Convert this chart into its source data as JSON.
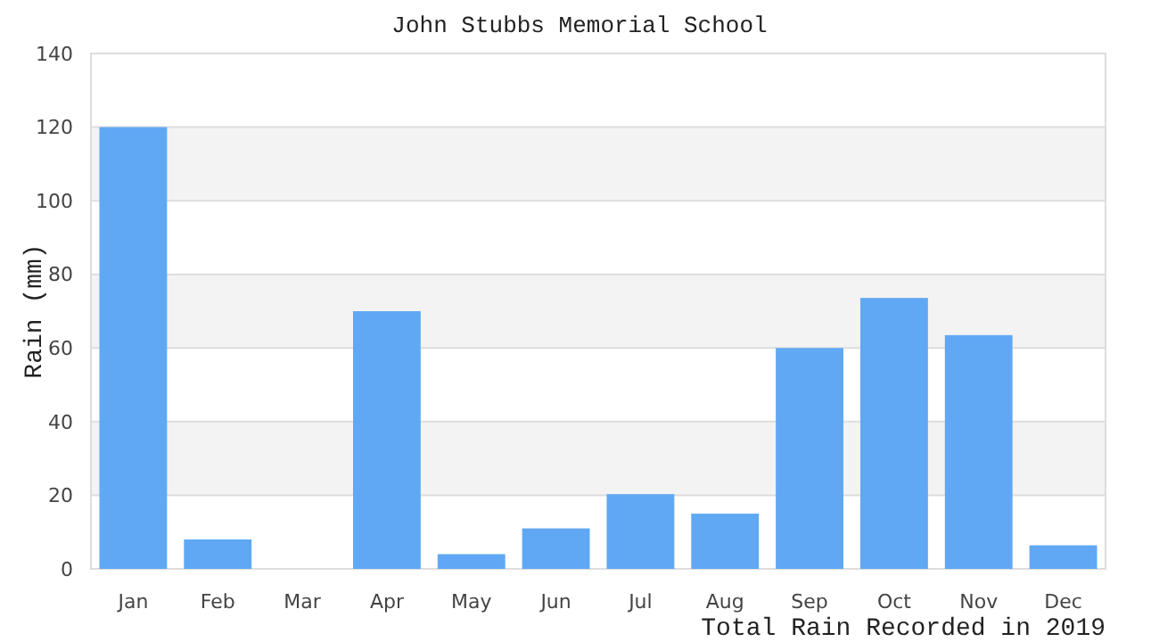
{
  "chart_data": {
    "type": "bar",
    "title": "John Stubbs Memorial School",
    "xlabel": "Total Rain Recorded in 2019",
    "ylabel": "Rain (mm)",
    "categories": [
      "Jan",
      "Feb",
      "Mar",
      "Apr",
      "May",
      "Jun",
      "Jul",
      "Aug",
      "Sep",
      "Oct",
      "Nov",
      "Dec"
    ],
    "values": [
      120,
      8,
      0,
      70,
      4,
      11,
      20.3,
      15,
      60,
      73.6,
      63.5,
      6.4
    ],
    "color": "#60a8f4",
    "ylim": [
      0,
      140
    ],
    "yticks": [
      0,
      20,
      40,
      60,
      80,
      100,
      120,
      140
    ],
    "grid": "y"
  }
}
